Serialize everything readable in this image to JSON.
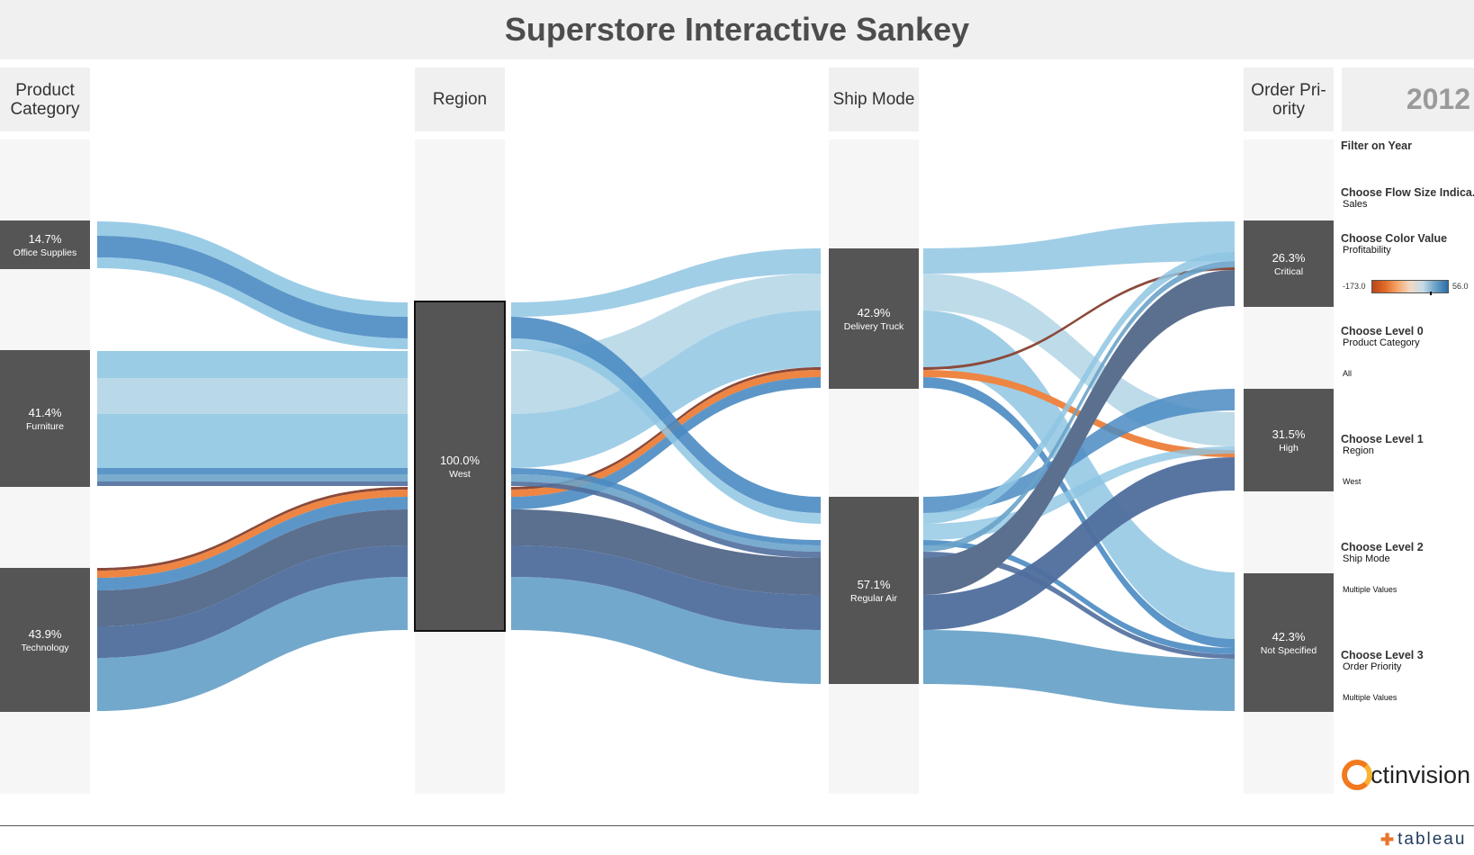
{
  "title": "Superstore Interactive Sankey",
  "year": "2012",
  "columns": [
    {
      "key": "category",
      "header": [
        "Product",
        "Category"
      ]
    },
    {
      "key": "region",
      "header": [
        "Region"
      ]
    },
    {
      "key": "ship",
      "header": [
        "Ship Mode"
      ]
    },
    {
      "key": "priority",
      "header": [
        "Order Pri-",
        "ority"
      ]
    }
  ],
  "nodes": [
    {
      "col": 0,
      "pct": "14.7%",
      "label": "Office Supplies"
    },
    {
      "col": 0,
      "pct": "41.4%",
      "label": "Furniture"
    },
    {
      "col": 0,
      "pct": "43.9%",
      "label": "Technology"
    },
    {
      "col": 1,
      "pct": "100.0%",
      "label": "West",
      "selected": true
    },
    {
      "col": 2,
      "pct": "42.9%",
      "label": "Delivery Truck"
    },
    {
      "col": 2,
      "pct": "57.1%",
      "label": "Regular Air"
    },
    {
      "col": 3,
      "pct": "26.3%",
      "label": "Critical"
    },
    {
      "col": 3,
      "pct": "31.5%",
      "label": "High"
    },
    {
      "col": 3,
      "pct": "42.3%",
      "label": "Not Specified"
    }
  ],
  "flow_colors": {
    "light_blue": "#8fc6e3",
    "pale_blue": "#b3d5e5",
    "mid_blue": "#4a8bc2",
    "steel_blue": "#6aa3c9",
    "slate": "#5b6f8f",
    "navy": "#4f6e9d",
    "orange": "#ee8543",
    "brown": "#8b4a3a"
  },
  "controls": {
    "filter_year": "Filter on Year",
    "flow_size_label": "Choose Flow Size Indica..",
    "flow_size_value": "Sales",
    "color_label": "Choose Color Value",
    "color_value": "Profitability",
    "legend_min": "-173.0",
    "legend_max": "56.0",
    "level0_label": "Choose Level 0",
    "level0_value": "Product Category",
    "level0_filter": "All",
    "level1_label": "Choose Level 1",
    "level1_value": "Region",
    "level1_filter": "West",
    "level2_label": "Choose Level 2",
    "level2_value": "Ship Mode",
    "level2_filter": "Multiple Values",
    "level3_label": "Choose Level 3",
    "level3_value": "Order Priority",
    "level3_filter": "Multiple Values"
  },
  "branding": {
    "logo_text": "ctinvision",
    "footer": "tableau"
  }
}
